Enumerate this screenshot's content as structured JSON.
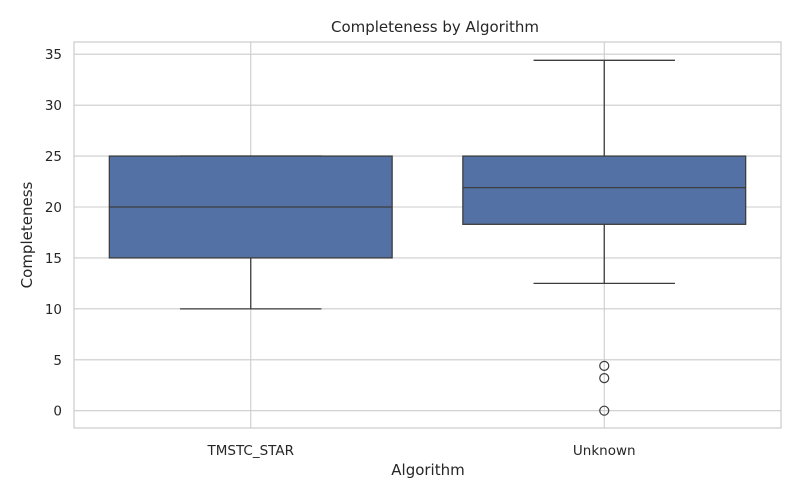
{
  "chart_data": {
    "type": "box",
    "title": "Completeness by Algorithm",
    "xlabel": "Algorithm",
    "ylabel": "Completeness",
    "ylim": [
      -1.7,
      36.2
    ],
    "yticks": [
      0,
      5,
      10,
      15,
      20,
      25,
      30,
      35
    ],
    "grid": true,
    "categories": [
      "TMSTC_STAR",
      "Unknown"
    ],
    "boxes": [
      {
        "category": "TMSTC_STAR",
        "whisker_low": 10,
        "q1": 15,
        "median": 20,
        "q3": 25,
        "whisker_high": 25,
        "outliers": []
      },
      {
        "category": "Unknown",
        "whisker_low": 12.5,
        "q1": 18.3,
        "median": 21.9,
        "q3": 25,
        "whisker_high": 34.4,
        "outliers": [
          4.4,
          3.2,
          0
        ]
      }
    ],
    "colors": {
      "box_fill": "#5471a5",
      "line": "#3d3d3d",
      "grid": "#cccccc",
      "frame": "#cccccc"
    }
  }
}
